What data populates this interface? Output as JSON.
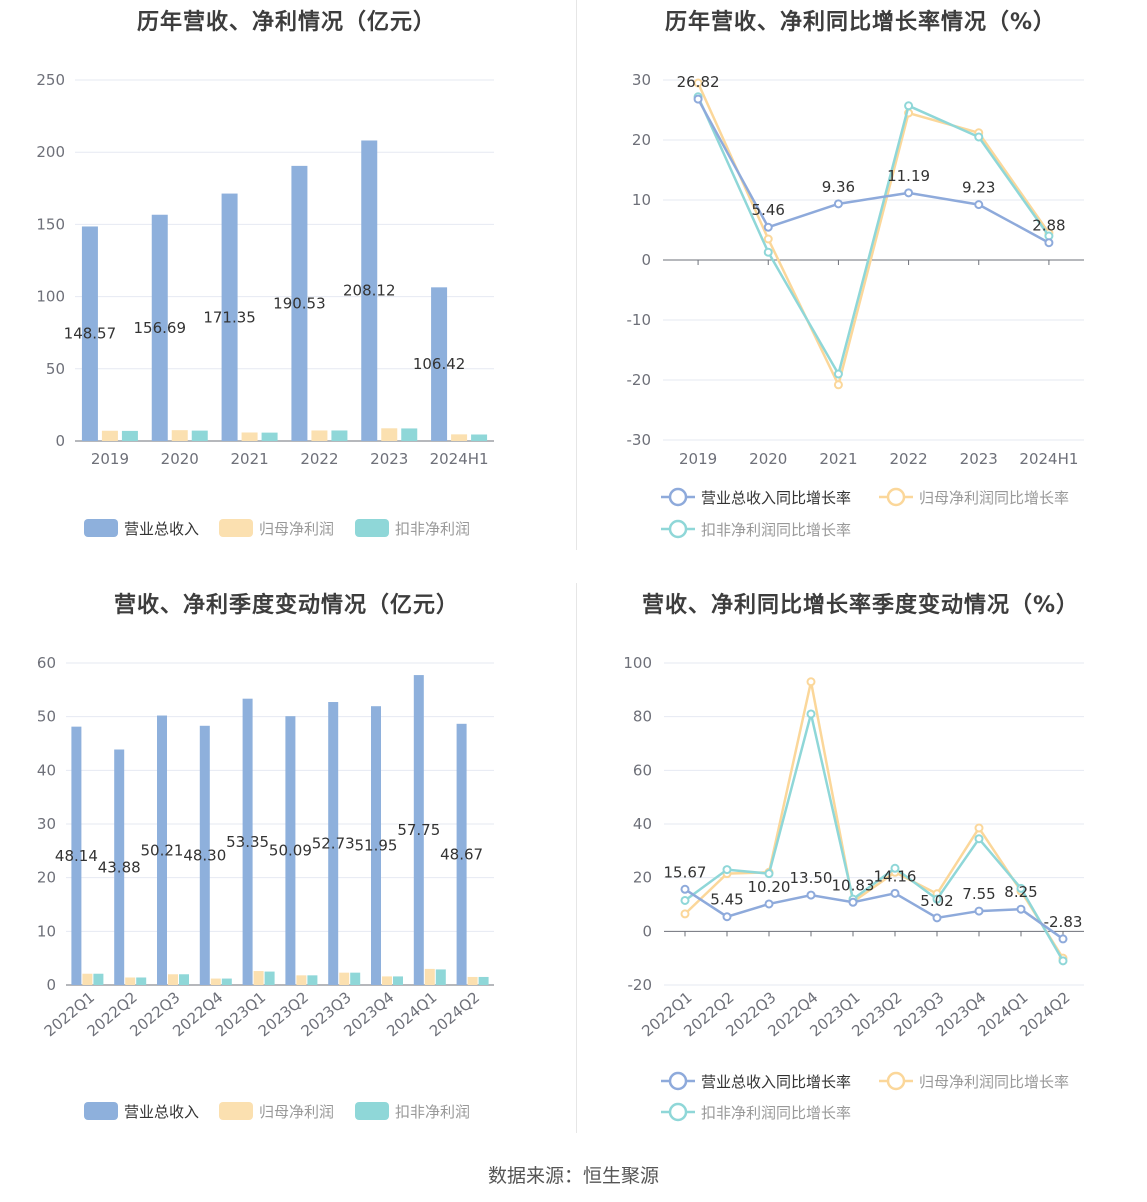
{
  "footer": "数据来源：恒生聚源",
  "chart_data": [
    {
      "type": "bar",
      "title": "历年营收、净利情况（亿元）",
      "categories": [
        "2019",
        "2020",
        "2021",
        "2022",
        "2023",
        "2024H1"
      ],
      "ylim": [
        0,
        250
      ],
      "yticks": [
        0,
        50,
        100,
        150,
        200,
        250
      ],
      "series": [
        {
          "name": "营业总收入",
          "color": "#8eb0dc",
          "values": [
            148.57,
            156.69,
            171.35,
            190.53,
            208.12,
            106.42
          ],
          "labels": [
            "148.57",
            "156.69",
            "171.35",
            "190.53",
            "208.12",
            "106.42"
          ]
        },
        {
          "name": "归母净利润",
          "color": "#fbe0b0",
          "values": [
            7.1,
            7.5,
            5.9,
            7.3,
            8.8,
            4.6
          ]
        },
        {
          "name": "扣非净利润",
          "color": "#8fd7d8",
          "values": [
            7.0,
            7.2,
            5.8,
            7.3,
            8.7,
            4.5
          ]
        }
      ],
      "legend": "bottom"
    },
    {
      "type": "line",
      "title": "历年营收、净利同比增长率情况（%）",
      "categories": [
        "2019",
        "2020",
        "2021",
        "2022",
        "2023",
        "2024H1"
      ],
      "ylim": [
        -30,
        30
      ],
      "yticks": [
        -30,
        -20,
        -10,
        0,
        10,
        20,
        30
      ],
      "series": [
        {
          "name": "营业总收入同比增长率",
          "color": "#8eaadb",
          "values": [
            26.82,
            5.46,
            9.36,
            11.19,
            9.23,
            2.88
          ],
          "labels": [
            "26.82",
            "5.46",
            "9.36",
            "11.19",
            "9.23",
            "2.88"
          ]
        },
        {
          "name": "归母净利润同比增长率",
          "color": "#fbd79a",
          "values": [
            29.5,
            3.5,
            -20.8,
            24.5,
            21.2,
            4.5
          ]
        },
        {
          "name": "扣非净利润同比增长率",
          "color": "#8fd7d8",
          "values": [
            27.2,
            1.3,
            -19.0,
            25.7,
            20.5,
            4.0
          ]
        }
      ],
      "legend": "bottom"
    },
    {
      "type": "bar",
      "title": "营收、净利季度变动情况（亿元）",
      "categories": [
        "2022Q1",
        "2022Q2",
        "2022Q3",
        "2022Q4",
        "2023Q1",
        "2023Q2",
        "2023Q3",
        "2023Q4",
        "2024Q1",
        "2024Q2"
      ],
      "ylim": [
        0,
        60
      ],
      "yticks": [
        0,
        10,
        20,
        30,
        40,
        50,
        60
      ],
      "series": [
        {
          "name": "营业总收入",
          "color": "#8eb0dc",
          "values": [
            48.14,
            43.88,
            50.21,
            48.3,
            53.35,
            50.09,
            52.73,
            51.95,
            57.75,
            48.67
          ],
          "labels": [
            "48.14",
            "43.88",
            "50.21",
            "48.30",
            "53.35",
            "50.09",
            "52.73",
            "51.95",
            "57.75",
            "48.67"
          ]
        },
        {
          "name": "归母净利润",
          "color": "#fbe0b0",
          "values": [
            2.1,
            1.4,
            2.0,
            1.2,
            2.6,
            1.8,
            2.3,
            1.6,
            3.0,
            1.5
          ]
        },
        {
          "name": "扣非净利润",
          "color": "#8fd7d8",
          "values": [
            2.1,
            1.4,
            2.0,
            1.2,
            2.5,
            1.8,
            2.3,
            1.6,
            2.9,
            1.5
          ]
        }
      ],
      "legend": "bottom"
    },
    {
      "type": "line",
      "title": "营收、净利同比增长率季度变动情况（%）",
      "categories": [
        "2022Q1",
        "2022Q2",
        "2022Q3",
        "2022Q4",
        "2023Q1",
        "2023Q2",
        "2023Q3",
        "2023Q4",
        "2024Q1",
        "2024Q2"
      ],
      "ylim": [
        -20,
        100
      ],
      "yticks": [
        -20,
        0,
        20,
        40,
        60,
        80,
        100
      ],
      "series": [
        {
          "name": "营业总收入同比增长率",
          "color": "#8eaadb",
          "values": [
            15.67,
            5.45,
            10.2,
            13.5,
            10.83,
            14.16,
            5.02,
            7.55,
            8.25,
            -2.83
          ],
          "labels": [
            "15.67",
            "5.45",
            "10.20",
            "13.50",
            "10.83",
            "14.16",
            "5.02",
            "7.55",
            "8.25",
            "-2.83"
          ]
        },
        {
          "name": "归母净利润同比增长率",
          "color": "#fbd79a",
          "values": [
            6.5,
            21.5,
            22.0,
            93.0,
            11.0,
            22.0,
            14.0,
            38.5,
            15.0,
            -10.0
          ]
        },
        {
          "name": "扣非净利润同比增长率",
          "color": "#8fd7d8",
          "values": [
            11.5,
            23.0,
            21.5,
            81.0,
            12.0,
            23.5,
            12.0,
            34.5,
            16.0,
            -11.0
          ]
        }
      ],
      "legend": "bottom"
    }
  ]
}
